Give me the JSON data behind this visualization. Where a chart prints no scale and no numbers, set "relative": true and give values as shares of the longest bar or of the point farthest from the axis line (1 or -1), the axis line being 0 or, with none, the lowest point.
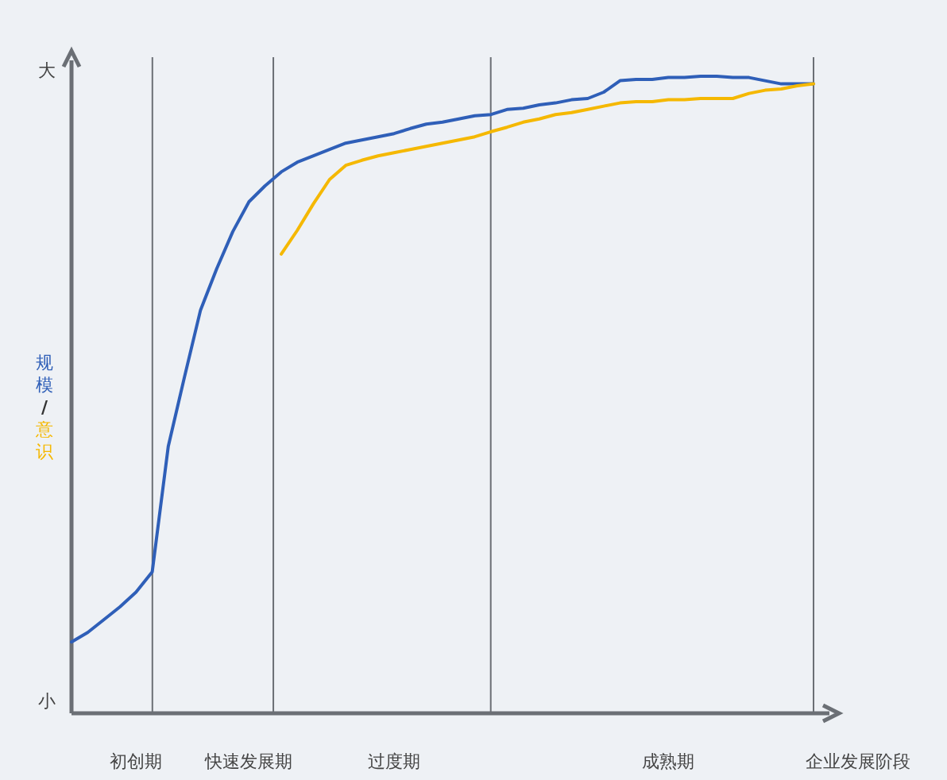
{
  "chart_data": {
    "type": "line",
    "relative": true,
    "xlabel": "企业发展阶段",
    "ylabel": "规模/意识",
    "annotations": [
      "大",
      "小"
    ],
    "line_style": "solid",
    "categories": [
      null,
      null,
      null,
      null,
      "初创期",
      null,
      null,
      null,
      null,
      null,
      null,
      "快速发展期",
      null,
      null,
      null,
      null,
      null,
      null,
      null,
      null,
      "过度期",
      null,
      null,
      null,
      null,
      null,
      null,
      null,
      null,
      null,
      null,
      null,
      null,
      null,
      null,
      null,
      null,
      "成熟期",
      null,
      null,
      null,
      null,
      null,
      null,
      null,
      null,
      null
    ],
    "grid": "x",
    "series": [
      {
        "color": "#2f5fb8",
        "values": [
          0.112,
          0.127,
          0.147,
          0.167,
          0.19,
          0.222,
          0.419,
          0.528,
          0.633,
          0.698,
          0.756,
          0.803,
          0.828,
          0.85,
          0.865,
          0.875,
          0.885,
          0.895,
          0.9,
          0.905,
          0.91,
          0.918,
          0.925,
          0.928,
          0.933,
          0.938,
          0.94,
          0.948,
          0.95,
          0.955,
          0.958,
          0.963,
          0.965,
          0.975,
          0.993,
          0.995,
          0.995,
          0.998,
          0.998,
          1,
          1,
          0.998,
          0.998,
          0.993,
          0.988,
          0.988,
          0.988
        ]
      },
      {
        "color": "#f5b800",
        "values": [
          null,
          null,
          null,
          null,
          null,
          null,
          null,
          null,
          null,
          null,
          null,
          null,
          null,
          0.721,
          0.758,
          0.8,
          0.838,
          0.86,
          0.868,
          0.875,
          0.88,
          0.885,
          0.89,
          0.895,
          0.9,
          0.905,
          0.913,
          0.92,
          0.928,
          0.933,
          0.94,
          0.943,
          0.948,
          0.953,
          0.958,
          0.96,
          0.96,
          0.963,
          0.963,
          0.965,
          0.965,
          0.965,
          0.973,
          0.978,
          0.98,
          0.985,
          0.988
        ]
      }
    ]
  }
}
